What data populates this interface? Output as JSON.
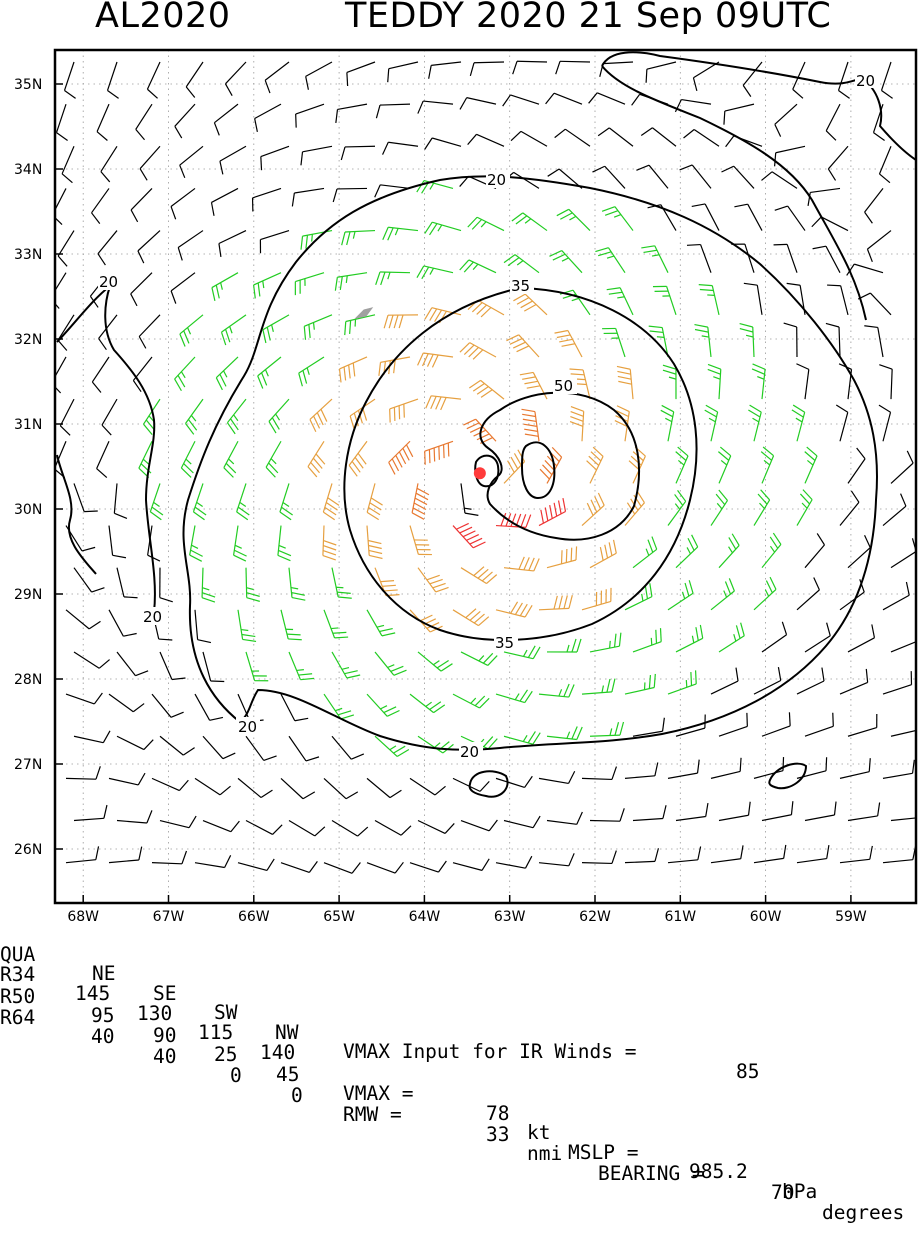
{
  "title": {
    "left": "AL2020",
    "right": "TEDDY 2020 21 Sep 09UTC"
  },
  "map": {
    "lat_labels": [
      "26N",
      "27N",
      "28N",
      "29N",
      "30N",
      "31N",
      "32N",
      "33N",
      "34N",
      "35N"
    ],
    "lon_labels": [
      "68W",
      "67W",
      "66W",
      "65W",
      "64W",
      "63W",
      "62W",
      "61W",
      "60W",
      "59W"
    ],
    "contour_labels": [
      "20",
      "20",
      "20",
      "20",
      "20",
      "35",
      "35",
      "50"
    ],
    "colors": {
      "below_20": "#000000",
      "20_to_35": "#22cc22",
      "35_to_50": "#e6a040",
      "50_to_64": "#e87830",
      "above_64": "#ee3333",
      "center": "#ff3b3b"
    },
    "center": {
      "lon": -63.35,
      "lat": 30.42
    }
  },
  "stats": {
    "header": {
      "label": "QUA",
      "ne": "NE",
      "se": "SE",
      "sw": "SW",
      "nw": "NW",
      "vmax_input": "VMAX Input for IR Winds =",
      "vmax_input_value": "85"
    },
    "r34": {
      "label": "R34",
      "ne": "145",
      "se": "130",
      "sw": "115",
      "nw": "140"
    },
    "r50": {
      "label": "R50",
      "ne": "95",
      "se": "90",
      "sw": "25",
      "nw": "45",
      "vmax": "VMAX =",
      "vmax_value": "78",
      "vmax_unit": "kt",
      "mslp": "MSLP =",
      "mslp_value": "985.2",
      "mslp_unit": "hPa"
    },
    "r64": {
      "label": "R64",
      "ne": "40",
      "se": "40",
      "sw": "0",
      "nw": "0",
      "rmw": "RMW =",
      "rmw_value": "33",
      "rmw_unit": "nmi",
      "bearing": "BEARING =",
      "bearing_value": "70",
      "bearing_unit": "degrees"
    }
  }
}
